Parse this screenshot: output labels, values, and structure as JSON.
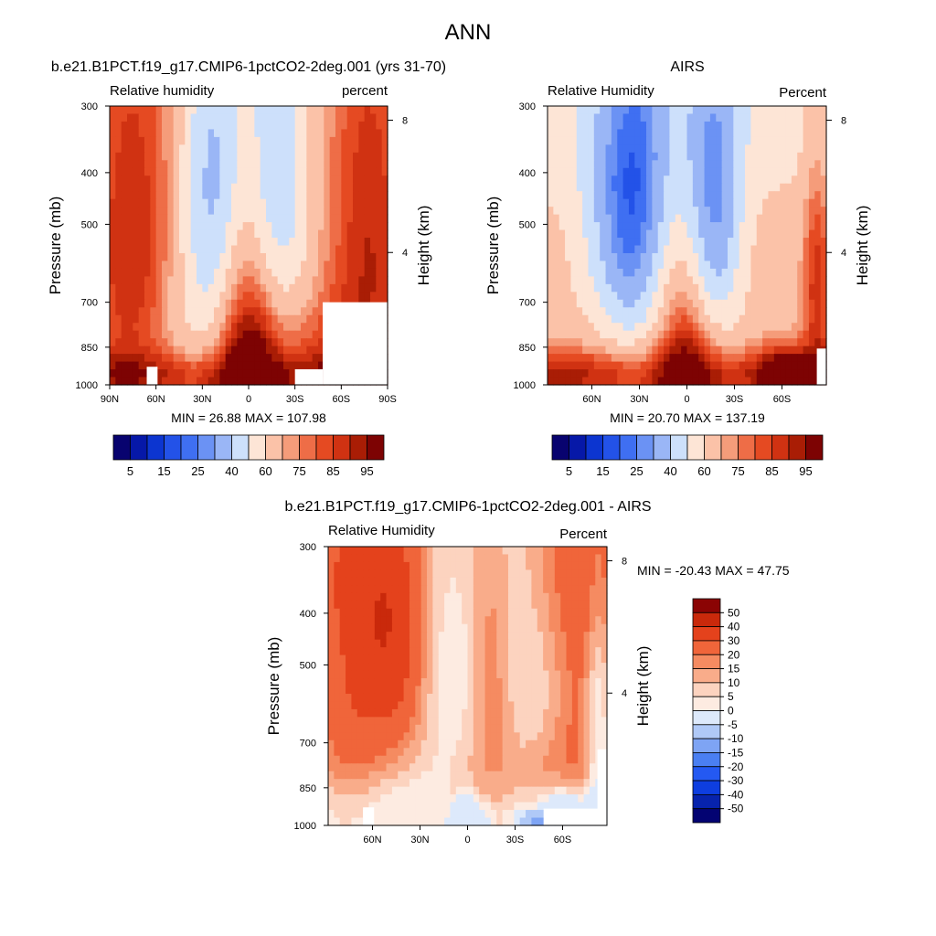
{
  "page_title": "ANN",
  "colors": {
    "rh_palette": [
      "#08036f",
      "#0618a8",
      "#0c35d0",
      "#2352e8",
      "#3f6ff2",
      "#6b92f4",
      "#9ab6f6",
      "#cde0fb",
      "#fde5d6",
      "#fbc2a8",
      "#f59c7a",
      "#ee6d47",
      "#e54a22",
      "#d03212",
      "#a91d05",
      "#7d0303"
    ],
    "diff_palette": [
      "#030372",
      "#0723ad",
      "#0e3ee0",
      "#2459f2",
      "#4a7ff2",
      "#7ea4f4",
      "#b0c9f7",
      "#dde9fb",
      "#fdebe1",
      "#fcd3bf",
      "#f9ac8a",
      "#f58b61",
      "#f0653a",
      "#e4421c",
      "#c9290b",
      "#8b0404"
    ]
  },
  "chart_data": [
    {
      "type": "heatmap",
      "id": "model",
      "title": "b.e21.B1PCT.f19_g17.CMIP6-1pctCO2-2deg.001 (yrs 31-70)",
      "subtitle_left": "Relative humidity",
      "subtitle_right": "percent",
      "ylabel": "Pressure (mb)",
      "y2label": "Height (km)",
      "x_ticks": [
        "90N",
        "60N",
        "30N",
        "0",
        "30S",
        "60S",
        "90S"
      ],
      "x_tick_values": [
        90,
        60,
        30,
        0,
        -30,
        -60,
        -90
      ],
      "xlim": [
        90,
        -90
      ],
      "y_ticks": [
        "300",
        "400",
        "500",
        "700",
        "850",
        "1000"
      ],
      "y_tick_values": [
        300,
        400,
        500,
        700,
        850,
        1000
      ],
      "ylim": [
        300,
        1000
      ],
      "y_log": true,
      "y2_ticks": [
        "8",
        "4"
      ],
      "y2_tick_values": [
        8,
        4
      ],
      "stats": "MIN =  26.88  MAX = 107.98",
      "min": 26.88,
      "max": 107.98,
      "colorbar_orientation": "horizontal",
      "colorbar_labels": [
        "5",
        "15",
        "25",
        "40",
        "60",
        "75",
        "85",
        "95"
      ],
      "levels": [
        5,
        10,
        15,
        20,
        25,
        30,
        40,
        50,
        60,
        70,
        75,
        80,
        85,
        90,
        95
      ],
      "palette": "rh_palette",
      "missing_regions": [
        {
          "lat": [
            66,
            59
          ],
          "p": [
            925,
            1000
          ]
        },
        {
          "lat": [
            -30,
            -48
          ],
          "p": [
            935,
            1000
          ]
        },
        {
          "lat": [
            -48,
            -90
          ],
          "p": [
            700,
            1000
          ]
        }
      ]
    },
    {
      "type": "heatmap",
      "id": "obs",
      "title": "AIRS",
      "subtitle_left": "Relative Humidity",
      "subtitle_right": "Percent",
      "ylabel": "Pressure (mb)",
      "y2label": "Height (km)",
      "x_ticks": [
        "60N",
        "30N",
        "0",
        "30S",
        "60S"
      ],
      "x_tick_values": [
        60,
        30,
        0,
        -30,
        -60
      ],
      "xlim": [
        88,
        -88
      ],
      "y_ticks": [
        "300",
        "400",
        "500",
        "700",
        "850",
        "1000"
      ],
      "y_tick_values": [
        300,
        400,
        500,
        700,
        850,
        1000
      ],
      "ylim": [
        300,
        1000
      ],
      "y_log": true,
      "y2_ticks": [
        "8",
        "4"
      ],
      "y2_tick_values": [
        8,
        4
      ],
      "stats": "MIN =  20.70  MAX = 137.19",
      "min": 20.7,
      "max": 137.19,
      "colorbar_orientation": "horizontal",
      "colorbar_labels": [
        "5",
        "15",
        "25",
        "40",
        "60",
        "75",
        "85",
        "95"
      ],
      "levels": [
        5,
        10,
        15,
        20,
        25,
        30,
        40,
        50,
        60,
        70,
        75,
        80,
        85,
        90,
        95
      ],
      "palette": "rh_palette",
      "missing_regions": [
        {
          "lat": [
            -82,
            -88
          ],
          "p": [
            855,
            1000
          ]
        }
      ]
    },
    {
      "type": "heatmap",
      "id": "diff",
      "title": "b.e21.B1PCT.f19_g17.CMIP6-1pctCO2-2deg.001 - AIRS",
      "subtitle_left": "Relative Humidity",
      "subtitle_right": "Percent",
      "ylabel": "Pressure (mb)",
      "y2label": "Height (km)",
      "x_ticks": [
        "60N",
        "30N",
        "0",
        "30S",
        "60S"
      ],
      "x_tick_values": [
        60,
        30,
        0,
        -30,
        -60
      ],
      "xlim": [
        88,
        -88
      ],
      "y_ticks": [
        "300",
        "400",
        "500",
        "700",
        "850",
        "1000"
      ],
      "y_tick_values": [
        300,
        400,
        500,
        700,
        850,
        1000
      ],
      "ylim": [
        300,
        1000
      ],
      "y_log": true,
      "y2_ticks": [
        "8",
        "4"
      ],
      "y2_tick_values": [
        8,
        4
      ],
      "stats": "MIN = -20.43  MAX =  47.75",
      "min": -20.43,
      "max": 47.75,
      "colorbar_orientation": "vertical",
      "colorbar_labels": [
        "50",
        "40",
        "30",
        "20",
        "15",
        "10",
        "5",
        "0",
        "-5",
        "-10",
        "-15",
        "-20",
        "-30",
        "-40",
        "-50"
      ],
      "levels": [
        -50,
        -40,
        -30,
        -20,
        -15,
        -10,
        -5,
        0,
        5,
        10,
        15,
        20,
        30,
        40,
        50
      ],
      "palette": "diff_palette",
      "missing_regions": [
        {
          "lat": [
            66,
            59
          ],
          "p": [
            925,
            1000
          ]
        },
        {
          "lat": [
            -48,
            -88
          ],
          "p": [
            930,
            1000
          ]
        },
        {
          "lat": [
            -82,
            -88
          ],
          "p": [
            720,
            1000
          ]
        }
      ]
    }
  ]
}
